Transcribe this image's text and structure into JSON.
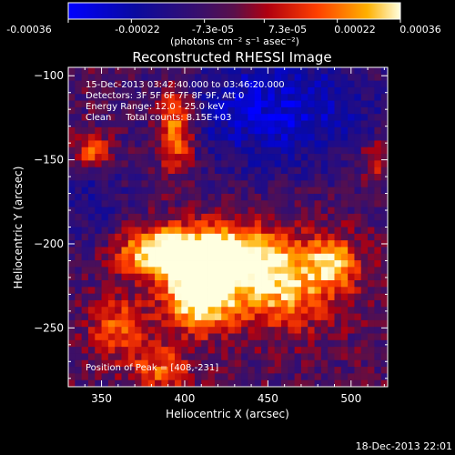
{
  "colorbar": {
    "ticks": [
      "-0.00036",
      "-0.00022",
      "-7.3e-05",
      "7.3e-05",
      "0.00022",
      "0.00036"
    ],
    "units": "(photons cm⁻² s⁻¹ asec⁻²)"
  },
  "chart_data": {
    "type": "heatmap",
    "title": "Reconstructed RHESSI Image",
    "xlabel": "Heliocentric X (arcsec)",
    "ylabel": "Heliocentric Y (arcsec)",
    "xlim": [
      330,
      522
    ],
    "ylim": [
      -285,
      -95
    ],
    "xticks": [
      350,
      400,
      450,
      500
    ],
    "yticks": [
      -100,
      -150,
      -200,
      -250
    ],
    "colorbar_range": [
      -0.00036,
      0.00036
    ],
    "annotations": [
      "15-Dec-2013 03:42:40.000 to 03:46:20.000",
      "Detectors: 3F 5F 6F 7F 8F 9F, Att 0",
      "Energy Range: 12.0 - 25.0 keV",
      "Clean     Total counts: 8.15E+03"
    ],
    "peak_label": "Position of Peak = [408,-231]",
    "sources": [
      {
        "x": 408,
        "y": -231,
        "amp": 1.0,
        "sx": 14,
        "sy": 14
      },
      {
        "x": 385,
        "y": -205,
        "amp": 0.9,
        "sx": 18,
        "sy": 10
      },
      {
        "x": 420,
        "y": -205,
        "amp": 0.85,
        "sx": 22,
        "sy": 11
      },
      {
        "x": 455,
        "y": -222,
        "amp": 0.85,
        "sx": 26,
        "sy": 18
      },
      {
        "x": 395,
        "y": -130,
        "amp": 0.75,
        "sx": 8,
        "sy": 18
      },
      {
        "x": 345,
        "y": -145,
        "amp": 0.6,
        "sx": 8,
        "sy": 7
      },
      {
        "x": 490,
        "y": -210,
        "amp": 0.55,
        "sx": 10,
        "sy": 10
      },
      {
        "x": 360,
        "y": -250,
        "amp": 0.55,
        "sx": 12,
        "sy": 12
      },
      {
        "x": 385,
        "y": -275,
        "amp": 0.5,
        "sx": 12,
        "sy": 10
      },
      {
        "x": 515,
        "y": -150,
        "amp": 0.45,
        "sx": 6,
        "sy": 8
      }
    ]
  },
  "footer": {
    "timestamp": "18-Dec-2013 22:01"
  }
}
